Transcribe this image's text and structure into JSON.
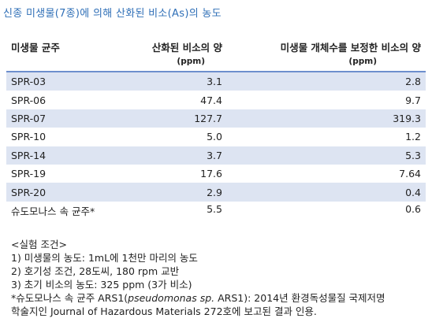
{
  "title": "신종 미생물(7종)에 의해 산화된 비소(As)의 농도",
  "headers": {
    "strain": "미생물 균주",
    "oxidized": "산화된 비소의 양",
    "oxidized_unit": "(ppm)",
    "corrected": "미생물 개체수를 보정한 비소의 양",
    "corrected_unit": "(ppm)"
  },
  "rows": [
    {
      "strain": "SPR-03",
      "oxidized": "3.1",
      "corrected": "2.8"
    },
    {
      "strain": "SPR-06",
      "oxidized": "47.4",
      "corrected": "9.7"
    },
    {
      "strain": "SPR-07",
      "oxidized": "127.7",
      "corrected": "319.3"
    },
    {
      "strain": "SPR-10",
      "oxidized": "5.0",
      "corrected": "1.2"
    },
    {
      "strain": "SPR-14",
      "oxidized": "3.7",
      "corrected": "5.3"
    },
    {
      "strain": "SPR-19",
      "oxidized": "17.6",
      "corrected": "7.64"
    },
    {
      "strain": "SPR-20",
      "oxidized": "2.9",
      "corrected": "0.4"
    },
    {
      "strain": "슈도모나스 속 균주*",
      "oxidized": "5.5",
      "corrected": "0.6"
    }
  ],
  "notes": {
    "heading": "<실험 조건>",
    "items": [
      "1)  미생물의 농도: 1mL에 1천만 마리의 농도",
      "2)  호기성 조건, 28도씨, 180 rpm 교반",
      "3)  초기 비소의 농도: 325 ppm (3가 비소)"
    ],
    "footnote_prefix": "*슈도모나스 속 균주 ARS1(",
    "footnote_italic": "pseudomonas sp.",
    "footnote_suffix": " ARS1): 2014년 환경독성물질 국제저명",
    "footnote_line2": "학술지인 Journal of Hazardous Materials 272호에 보고된 결과 인용."
  },
  "colors": {
    "title": "#2f6fb7",
    "stripe": "#dde4f2",
    "rule": "#6d8fcd"
  }
}
